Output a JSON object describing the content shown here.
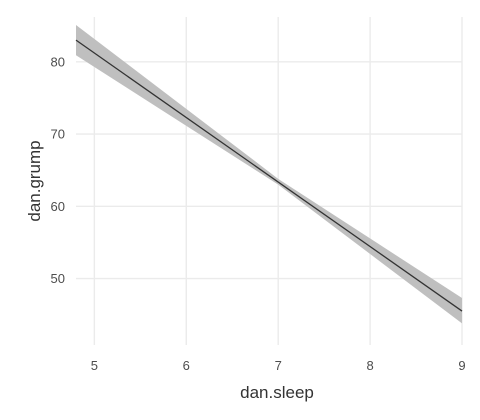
{
  "chart_data": {
    "type": "line",
    "xlabel": "dan.sleep",
    "ylabel": "dan.grump",
    "xlim": [
      4.8,
      9.0
    ],
    "ylim": [
      40.8,
      86.2
    ],
    "xticks": [
      5,
      6,
      7,
      8,
      9
    ],
    "yticks": [
      50,
      60,
      70,
      80
    ],
    "grid": true,
    "series": [
      {
        "x": [
          4.8,
          9.0
        ],
        "y": [
          83.0,
          45.5
        ],
        "ribbon": {
          "x": [
            4.8,
            7.0,
            9.0
          ],
          "lower": [
            80.9,
            63.0,
            43.8
          ],
          "upper": [
            85.1,
            63.8,
            47.3
          ]
        }
      }
    ],
    "colors": {
      "line": "#333333",
      "ribbon": "#bfbfbf",
      "grid": "#ebebeb"
    }
  }
}
